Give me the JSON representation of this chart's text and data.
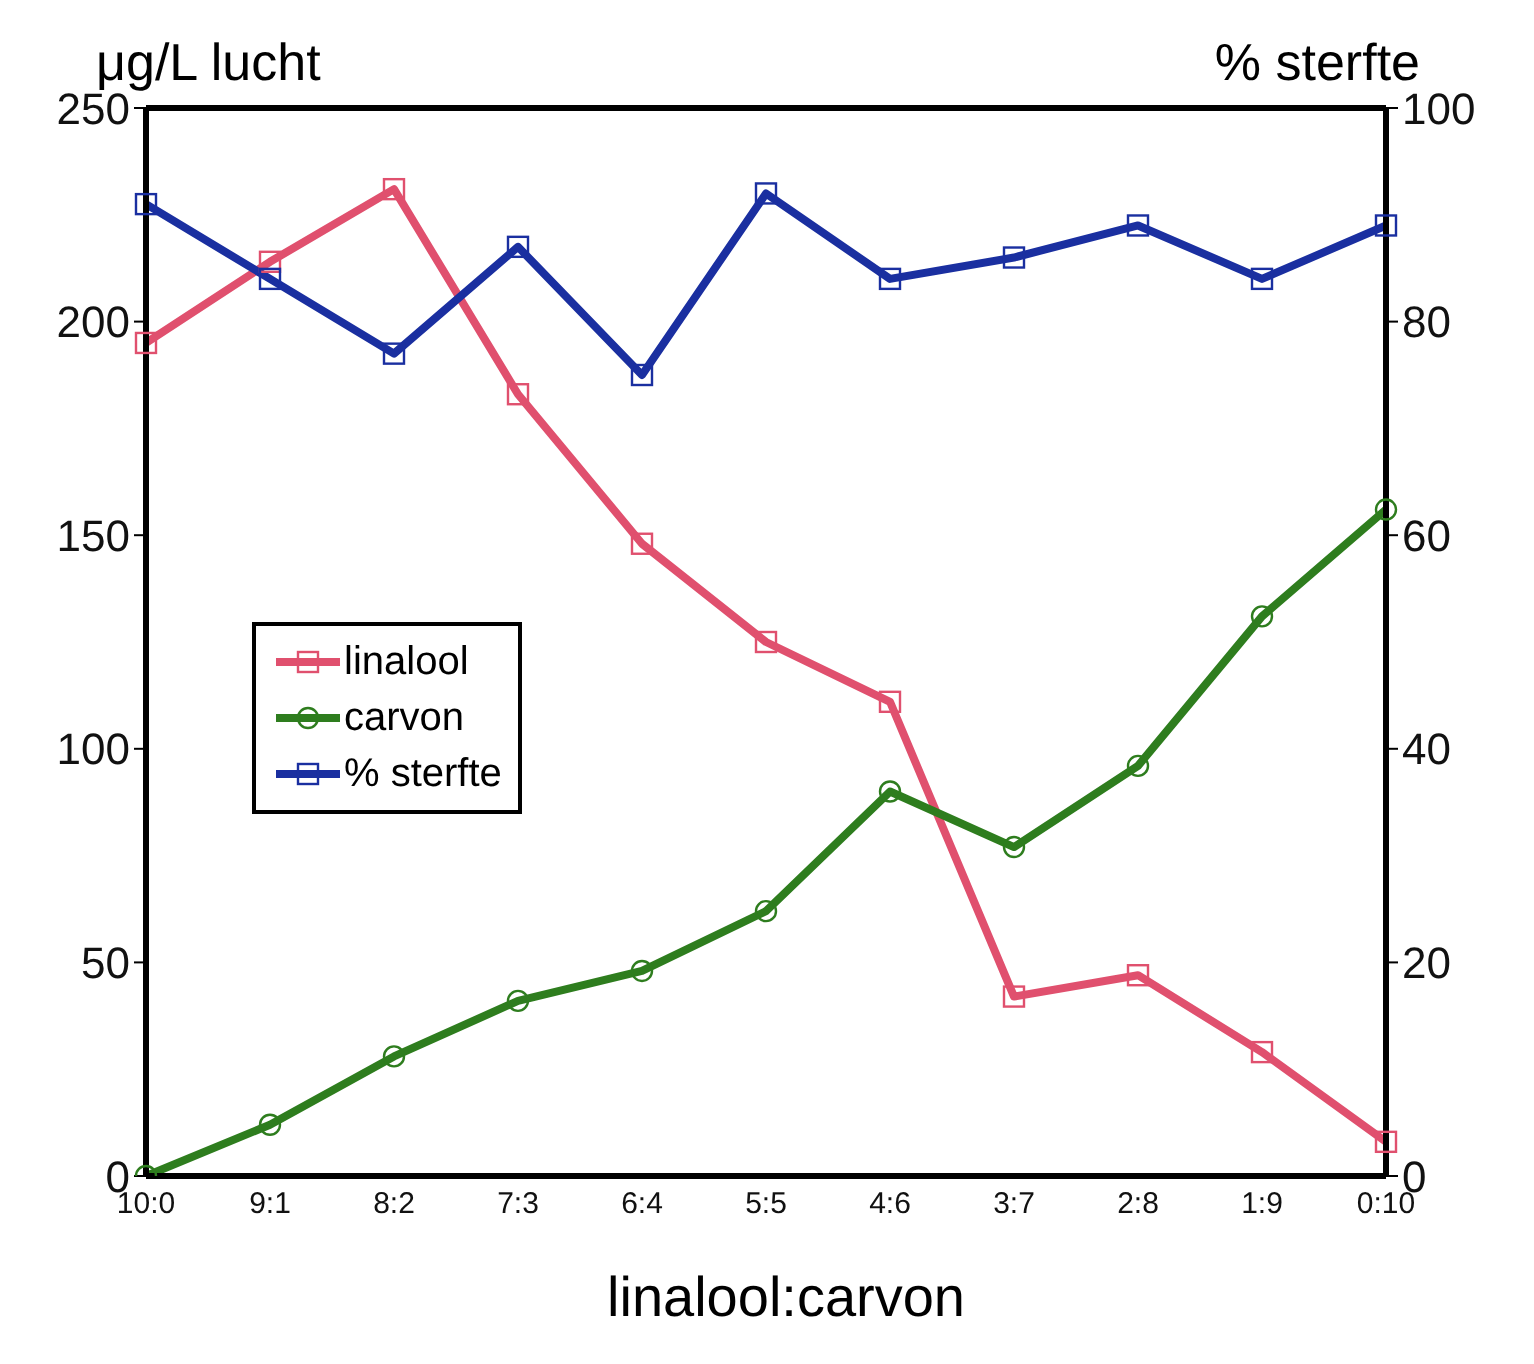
{
  "chart_data": {
    "type": "line",
    "xlabel": "linalool:carvon",
    "ylabel": "μg/L lucht",
    "y2label": "% sterfte",
    "categories": [
      "10:0",
      "9:1",
      "8:2",
      "7:3",
      "6:4",
      "5:5",
      "4:6",
      "3:7",
      "2:8",
      "1:9",
      "0:10"
    ],
    "series": [
      {
        "name": "linalool",
        "color": "#e0506e",
        "marker": "square",
        "values": [
          195,
          214,
          231,
          183,
          148,
          125,
          111,
          42,
          47,
          29,
          8
        ]
      },
      {
        "name": "carvon",
        "color": "#2e7d1e",
        "marker": "circle",
        "values": [
          0,
          12,
          28,
          41,
          48,
          62,
          90,
          77,
          96,
          131,
          156
        ]
      },
      {
        "name": "% sterfte",
        "color": "#1a2fa0",
        "marker": "square",
        "axis": "y2",
        "values": [
          91,
          84,
          77,
          87,
          75,
          92,
          84,
          86,
          89,
          84,
          89
        ]
      }
    ],
    "ylim": [
      0,
      250
    ],
    "yticks": [
      0,
      50,
      100,
      150,
      200,
      250
    ],
    "y2lim": [
      0,
      100
    ],
    "y2ticks": [
      0,
      20,
      40,
      60,
      80,
      100
    ],
    "grid": false,
    "legend": "left",
    "line_style": "solid"
  }
}
